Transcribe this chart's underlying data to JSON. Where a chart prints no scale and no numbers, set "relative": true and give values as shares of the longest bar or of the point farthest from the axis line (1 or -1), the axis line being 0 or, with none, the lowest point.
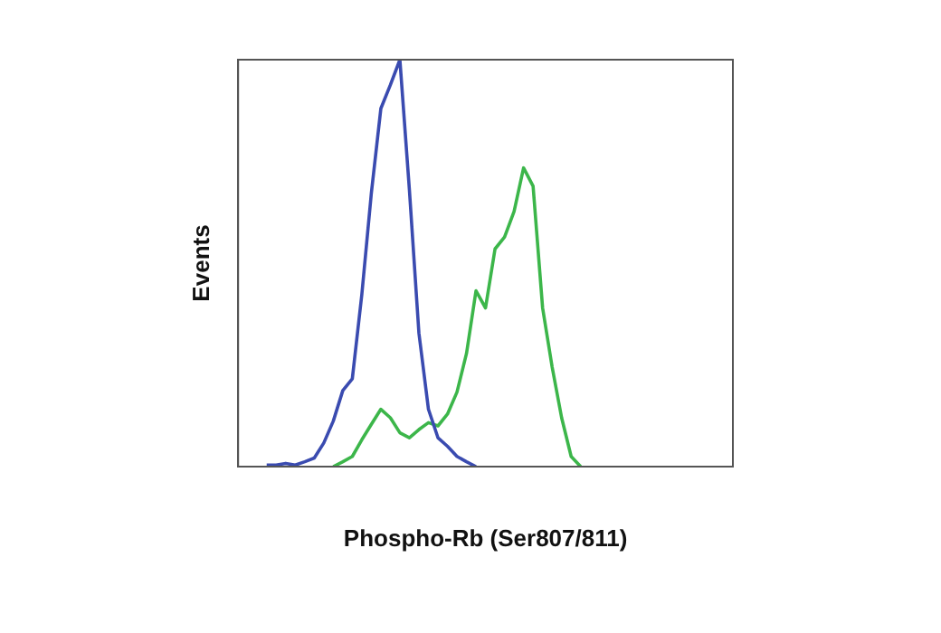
{
  "chart_data": {
    "type": "line",
    "relative": true,
    "xlabel": "Phospho-Rb (Ser807/811)",
    "ylabel": "Events",
    "grid": false,
    "legend": false,
    "marker": "none",
    "line_style": "solid",
    "categories": [
      null,
      null,
      null,
      null,
      null,
      null,
      null,
      null,
      null,
      null,
      null,
      null,
      null,
      null,
      null,
      null,
      null,
      null,
      null,
      null,
      null,
      null,
      null,
      null,
      null,
      null,
      null,
      null,
      null,
      null,
      null,
      null,
      null,
      null,
      null,
      null,
      null,
      null,
      null,
      null,
      null,
      null,
      null,
      null,
      null,
      null,
      null,
      null,
      null,
      null,
      null,
      null,
      null
    ],
    "series": [
      {
        "color": "#3a4bb0",
        "values": [
          null,
          null,
          null,
          0.004,
          0.004,
          0.008,
          0.004,
          0.012,
          0.021,
          0.058,
          0.112,
          0.187,
          0.216,
          0.423,
          0.672,
          0.88,
          0.938,
          1,
          0.68,
          0.328,
          0.141,
          0.071,
          0.05,
          0.025,
          0.012,
          0,
          null,
          null,
          null,
          null,
          null,
          null,
          null,
          null,
          null,
          null,
          null,
          null,
          null,
          null,
          null,
          null,
          null,
          null,
          null,
          null,
          null,
          null,
          null,
          null,
          null,
          null,
          null
        ]
      },
      {
        "color": "#3cb64a",
        "values": [
          null,
          null,
          null,
          null,
          null,
          null,
          null,
          null,
          null,
          null,
          0,
          0.012,
          0.025,
          0.066,
          0.104,
          0.141,
          0.12,
          0.083,
          0.071,
          0.091,
          0.108,
          0.1,
          0.129,
          0.183,
          0.278,
          0.432,
          0.39,
          0.535,
          0.564,
          0.627,
          0.734,
          0.689,
          0.39,
          0.245,
          0.12,
          0.025,
          0,
          null,
          null,
          null,
          null,
          null,
          null,
          null,
          null,
          null,
          null,
          null,
          null,
          null,
          null,
          null,
          null
        ]
      }
    ]
  }
}
